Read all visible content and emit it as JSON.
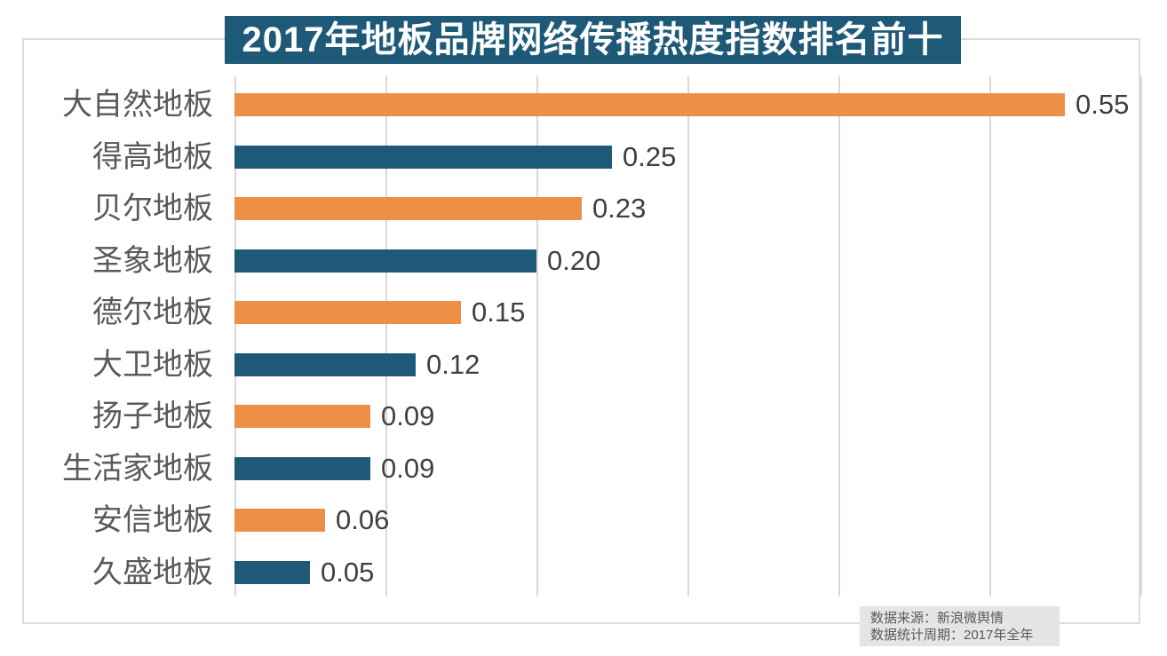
{
  "title": "2017年地板品牌网络传播热度指数排名前十",
  "footer": {
    "source": "数据来源：新浪微舆情",
    "period": "数据统计周期：2017年全年"
  },
  "colors": {
    "title_bg": "#1e5a78",
    "bar_orange": "#ed9047",
    "bar_blue": "#1e5a78",
    "gridline": "#d9d9d9",
    "category_text": "#595959",
    "value_text": "#3f3f3f",
    "footer_bg": "#e5e5e5"
  },
  "chart_data": {
    "type": "bar",
    "orientation": "horizontal",
    "title": "2017年地板品牌网络传播热度指数排名前十",
    "categories": [
      "大自然地板",
      "得高地板",
      "贝尔地板",
      "圣象地板",
      "德尔地板",
      "大卫地板",
      "扬子地板",
      "生活家地板",
      "安信地板",
      "久盛地板"
    ],
    "values": [
      0.55,
      0.25,
      0.23,
      0.2,
      0.15,
      0.12,
      0.09,
      0.09,
      0.06,
      0.05
    ],
    "value_labels": [
      "0.55",
      "0.25",
      "0.23",
      "0.20",
      "0.15",
      "0.12",
      "0.09",
      "0.09",
      "0.06",
      "0.05"
    ],
    "bar_color_pattern": [
      "#ed9047",
      "#1e5a78"
    ],
    "xlabel": "",
    "ylabel": "",
    "xlim": [
      0,
      0.6
    ],
    "grid_interval": 0.1,
    "grid": true,
    "legend": false,
    "annotations": [
      "数据来源：新浪微舆情",
      "数据统计周期：2017年全年"
    ]
  }
}
